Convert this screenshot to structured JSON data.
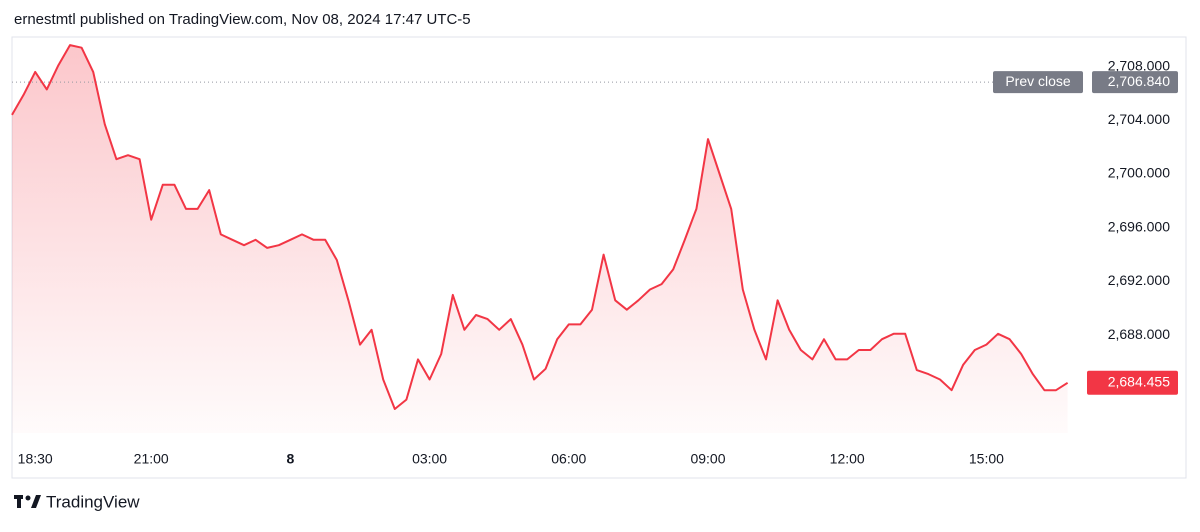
{
  "chart_data": {
    "type": "line",
    "title": "ernestmtl published on TradingView.com, Nov 08, 2024 17:47 UTC-5",
    "brand": "TradingView",
    "categories": [
      null,
      null,
      "18:30",
      null,
      null,
      null,
      null,
      null,
      null,
      null,
      null,
      null,
      "21:00",
      null,
      null,
      null,
      null,
      null,
      null,
      null,
      null,
      null,
      null,
      null,
      "8",
      null,
      null,
      null,
      null,
      null,
      null,
      null,
      null,
      null,
      null,
      null,
      "03:00",
      null,
      null,
      null,
      null,
      null,
      null,
      null,
      null,
      null,
      null,
      null,
      "06:00",
      null,
      null,
      null,
      null,
      null,
      null,
      null,
      null,
      null,
      null,
      null,
      "09:00",
      null,
      null,
      null,
      null,
      null,
      null,
      null,
      null,
      null,
      null,
      null,
      "12:00",
      null,
      null,
      null,
      null,
      null,
      null,
      null,
      null,
      null,
      null,
      null,
      "15:00",
      null,
      null,
      null,
      null,
      null,
      null,
      null
    ],
    "series": [
      {
        "color": "#f23645",
        "values": [
          2704.4,
          2705.9,
          2707.6,
          2706.3,
          2708.1,
          2709.6,
          2709.4,
          2707.6,
          2703.7,
          2701.1,
          2701.4,
          2701.1,
          2696.6,
          2699.2,
          2699.2,
          2697.4,
          2697.4,
          2698.8,
          2695.5,
          2695.1,
          2694.7,
          2695.1,
          2694.5,
          2694.7,
          2695.1,
          2695.5,
          2695.1,
          2695.1,
          2693.6,
          2690.6,
          2687.3,
          2688.4,
          2684.7,
          2682.5,
          2683.2,
          2686.2,
          2684.7,
          2686.6,
          2691.0,
          2688.4,
          2689.5,
          2689.2,
          2688.4,
          2689.2,
          2687.3,
          2684.7,
          2685.5,
          2687.7,
          2688.8,
          2688.8,
          2689.9,
          2694.0,
          2690.6,
          2689.9,
          2690.6,
          2691.4,
          2691.8,
          2692.9,
          2695.1,
          2697.4,
          2702.6,
          2700.0,
          2697.4,
          2691.4,
          2688.4,
          2686.2,
          2690.6,
          2688.4,
          2686.9,
          2686.2,
          2687.7,
          2686.2,
          2686.2,
          2686.9,
          2686.9,
          2687.7,
          2688.1,
          2688.1,
          2685.4,
          2685.1,
          2684.7,
          2683.9,
          2685.8,
          2686.9,
          2687.3,
          2688.1,
          2687.7,
          2686.6,
          2685.1,
          2683.9,
          2683.9,
          2684.455
        ]
      }
    ],
    "ylim": [
      2679.6,
      2710.2
    ],
    "yticks": [
      {
        "value": 2688,
        "label": "2,688.000"
      },
      {
        "value": 2692,
        "label": "2,692.000"
      },
      {
        "value": 2696,
        "label": "2,696.000"
      },
      {
        "value": 2700,
        "label": "2,700.000"
      },
      {
        "value": 2704,
        "label": "2,704.000"
      },
      {
        "value": 2708,
        "label": "2,708.000"
      }
    ],
    "prev_close": {
      "name": "Prev close",
      "value": 2706.84,
      "label": "2,706.840"
    },
    "last_price": {
      "value": 2684.455,
      "label": "2,684.455"
    },
    "grid": false
  }
}
